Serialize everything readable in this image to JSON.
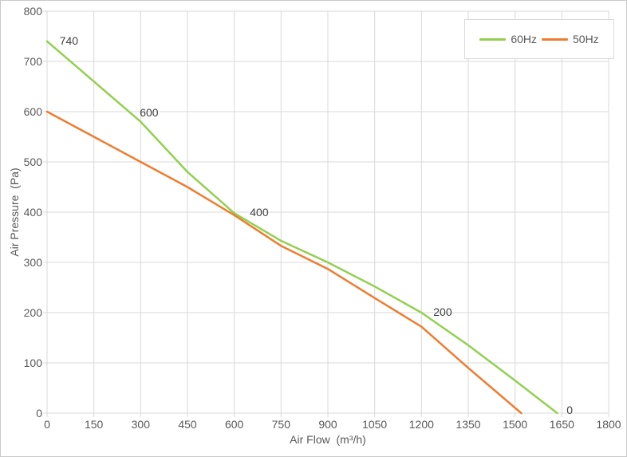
{
  "chart_data": {
    "type": "line",
    "title": "",
    "xlabel": "Air Flow  (m³/h)",
    "ylabel": "Air Pressure  (Pa)",
    "xlim": [
      0,
      1800
    ],
    "ylim": [
      0,
      800
    ],
    "x_ticks": [
      0,
      150,
      300,
      450,
      600,
      750,
      900,
      1050,
      1200,
      1350,
      1500,
      1650,
      1800
    ],
    "y_ticks": [
      0,
      100,
      200,
      300,
      400,
      500,
      600,
      700,
      800
    ],
    "grid": true,
    "legend_position": "top-right-inside",
    "colors": {
      "grid": "#d9d9d9",
      "frame": "#d9d9d9",
      "tick_text": "#595959",
      "annotation_text": "#3f3f3f",
      "background": "#ffffff"
    },
    "series": [
      {
        "name": "60Hz",
        "color": "#92d050",
        "points": [
          [
            0,
            740
          ],
          [
            150,
            660
          ],
          [
            300,
            580
          ],
          [
            450,
            480
          ],
          [
            600,
            398
          ],
          [
            750,
            343
          ],
          [
            900,
            300
          ],
          [
            1050,
            252
          ],
          [
            1200,
            200
          ],
          [
            1350,
            135
          ],
          [
            1500,
            65
          ],
          [
            1635,
            0
          ]
        ]
      },
      {
        "name": "50Hz",
        "color": "#ed7d31",
        "points": [
          [
            0,
            600
          ],
          [
            150,
            550
          ],
          [
            300,
            500
          ],
          [
            450,
            450
          ],
          [
            600,
            394
          ],
          [
            750,
            333
          ],
          [
            900,
            287
          ],
          [
            1050,
            229
          ],
          [
            1200,
            172
          ],
          [
            1350,
            90
          ],
          [
            1520,
            0
          ]
        ]
      }
    ],
    "annotations": [
      {
        "text": "740",
        "x": 70,
        "y": 741
      },
      {
        "text": "600",
        "x": 327,
        "y": 598
      },
      {
        "text": "400",
        "x": 680,
        "y": 400
      },
      {
        "text": "200",
        "x": 1268,
        "y": 202
      },
      {
        "text": "0",
        "x": 1675,
        "y": 6
      }
    ]
  }
}
